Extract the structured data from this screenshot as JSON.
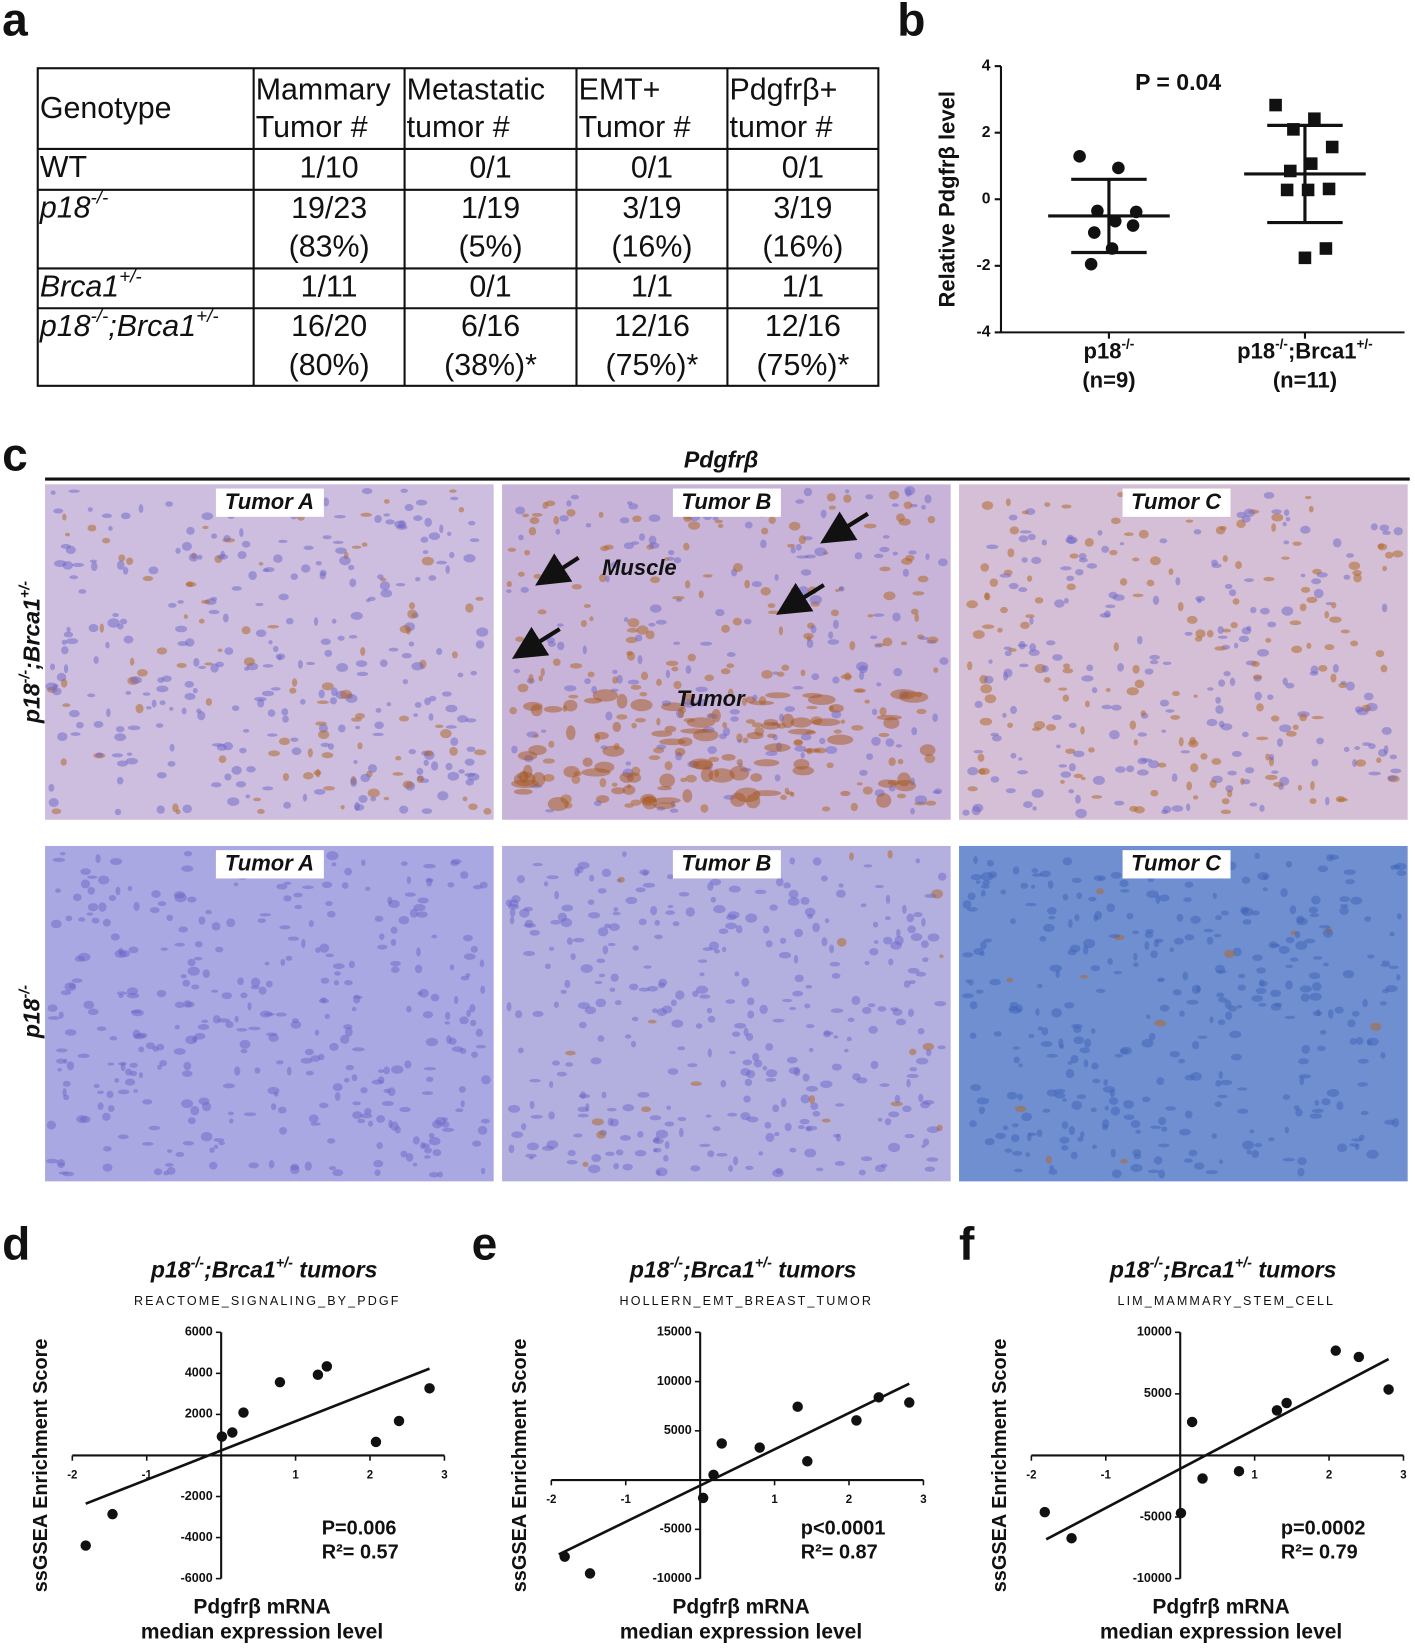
{
  "panel_labels": [
    "a",
    "b",
    "c",
    "d",
    "e",
    "f"
  ],
  "table": {
    "header": [
      [
        "Genotype"
      ],
      [
        "Mammary",
        "Tumor #"
      ],
      [
        "Metastatic",
        "tumor #"
      ],
      [
        "EMT+",
        "Tumor #"
      ],
      [
        "Pdgfrβ+",
        "tumor #"
      ]
    ],
    "rows": [
      {
        "genotype": [
          {
            "text": "WT"
          }
        ],
        "italic": false,
        "cells": [
          [
            "1/10"
          ],
          [
            "0/1"
          ],
          [
            "0/1"
          ],
          [
            "0/1"
          ]
        ]
      },
      {
        "genotype": [
          {
            "text": "p18"
          },
          {
            "sup": "-/-"
          }
        ],
        "italic": true,
        "cells": [
          [
            "19/23",
            "(83%)"
          ],
          [
            "1/19",
            "(5%)"
          ],
          [
            "3/19",
            "(16%)"
          ],
          [
            "3/19",
            "(16%)"
          ]
        ]
      },
      {
        "genotype": [
          {
            "text": "Brca1"
          },
          {
            "sup": "+/-"
          }
        ],
        "italic": true,
        "cells": [
          [
            "1/11"
          ],
          [
            "0/1"
          ],
          [
            "1/1"
          ],
          [
            "1/1"
          ]
        ]
      },
      {
        "genotype": [
          {
            "text": "p18"
          },
          {
            "sup": "-/-"
          },
          {
            "text": ";Brca1"
          },
          {
            "sup": "+/-"
          }
        ],
        "italic": true,
        "cells": [
          [
            "16/20",
            "(80%)"
          ],
          [
            "6/16",
            "(38%)*"
          ],
          [
            "12/16",
            "(75%)*"
          ],
          [
            "12/16",
            "(75%)*"
          ]
        ]
      }
    ]
  },
  "micrographs": {
    "stain": "Pdgfrβ",
    "column_labels": [
      "Tumor A",
      "Tumor B",
      "Tumor C"
    ],
    "row_labels": [
      [
        {
          "text": "p18"
        },
        {
          "sup": "-/-"
        },
        {
          "text": ";Brca1"
        },
        {
          "sup": "+/-"
        }
      ],
      [
        {
          "text": "p18"
        },
        {
          "sup": "-/-"
        }
      ]
    ],
    "annotations": [
      "Muscle",
      "Tumor"
    ]
  },
  "chart_data": [
    {
      "type": "dot",
      "ylabel": "Relative Pdgfrβ level",
      "annotation": "P = 0.04",
      "categories": [
        [
          {
            "text": "p18"
          },
          {
            "sup": "-/-"
          }
        ],
        [
          {
            "text": "p18"
          },
          {
            "sup": "-/-"
          },
          {
            "text": ";Brca1"
          },
          {
            "sup": "+/-"
          }
        ]
      ],
      "category_notes": [
        "(n=9)",
        "(n=11)"
      ],
      "ylim": [
        -4,
        4
      ],
      "yticks": [
        -4,
        -2,
        0,
        2,
        4
      ],
      "color": "#111",
      "groups": [
        {
          "marker": "circle",
          "values": [
            1.29,
            0.94,
            -0.35,
            -0.38,
            -0.66,
            -1.0,
            -0.79,
            -1.48,
            -1.95
          ],
          "mean": -0.5,
          "sd": 1.1
        },
        {
          "marker": "square",
          "values": [
            2.83,
            2.42,
            2.1,
            1.57,
            1.07,
            0.85,
            0.31,
            0.28,
            0.28,
            -1.48,
            -1.76
          ],
          "mean": 0.76,
          "sd": 1.46
        }
      ]
    },
    {
      "type": "scatter",
      "title": [
        {
          "text": "p18"
        },
        {
          "sup": "-/-"
        },
        {
          "text": ";Brca1"
        },
        {
          "sup": "+/-"
        },
        {
          "text": " tumors"
        }
      ],
      "subtitle": "REACTOME_SIGNALING_BY_PDGF",
      "ylabel": "ssGSEA Enrichment Score",
      "xlabel": [
        "Pdgfrβ mRNA",
        "median expression level"
      ],
      "annotations": [
        "P=0.006",
        "R²= 0.57"
      ],
      "xlim": [
        -2,
        3
      ],
      "xticks": [
        -2,
        -1,
        1,
        2,
        3
      ],
      "ylim": [
        -6000,
        6000
      ],
      "yticks": [
        6000,
        4000,
        2000,
        -2000,
        -4000,
        -6000
      ],
      "color": "#111",
      "x": [
        -1.82,
        -1.46,
        0.01,
        0.15,
        0.3,
        0.79,
        1.3,
        1.42,
        2.08,
        2.39,
        2.8
      ],
      "y": [
        -4390,
        -2860,
        920,
        1120,
        2090,
        3570,
        3930,
        4340,
        660,
        1680,
        3270
      ],
      "fit": {
        "x": [
          -1.82,
          2.8
        ],
        "y": [
          -2350,
          4230
        ]
      }
    },
    {
      "type": "scatter",
      "title": [
        {
          "text": "p18"
        },
        {
          "sup": "-/-"
        },
        {
          "text": ";Brca1"
        },
        {
          "sup": "+/-"
        },
        {
          "text": " tumors"
        }
      ],
      "subtitle": "HOLLERN_EMT_BREAST_TUMOR",
      "ylabel": "ssGSEA Enrichment Score",
      "xlabel": [
        "Pdgfrβ mRNA",
        "median expression level"
      ],
      "annotations": [
        "p<0.0001",
        "R²= 0.87"
      ],
      "xlim": [
        -2,
        3
      ],
      "xticks": [
        -2,
        -1,
        1,
        2,
        3
      ],
      "ylim": [
        -10000,
        15000
      ],
      "yticks": [
        15000,
        10000,
        5000,
        -5000,
        -10000
      ],
      "color": "#111",
      "x": [
        -1.82,
        -1.48,
        0.04,
        0.18,
        0.29,
        0.8,
        1.31,
        1.44,
        2.1,
        2.4,
        2.81
      ],
      "y": [
        -7770,
        -9470,
        -1810,
        530,
        3720,
        3300,
        7450,
        1910,
        6060,
        8400,
        7870
      ],
      "fit": {
        "x": [
          -1.9,
          2.81
        ],
        "y": [
          -7550,
          9790
        ]
      }
    },
    {
      "type": "scatter",
      "title": [
        {
          "text": "p18"
        },
        {
          "sup": "-/-"
        },
        {
          "text": ";Brca1"
        },
        {
          "sup": "+/-"
        },
        {
          "text": " tumors"
        }
      ],
      "subtitle": "LIM_MAMMARY_STEM_CELL",
      "ylabel": "ssGSEA Enrichment Score",
      "xlabel": [
        "Pdgfrβ mRNA",
        "median expression level"
      ],
      "annotations": [
        "p=0.0002",
        "R²= 0.79"
      ],
      "xlim": [
        -2,
        3
      ],
      "xticks": [
        -2,
        -1,
        1,
        2,
        3
      ],
      "ylim": [
        -10000,
        10000
      ],
      "yticks": [
        10000,
        5000,
        -5000,
        -10000
      ],
      "color": "#111",
      "x": [
        -1.82,
        -1.46,
        0.16,
        0.01,
        0.3,
        0.79,
        1.3,
        1.43,
        2.09,
        2.4,
        2.8
      ],
      "y": [
        -4600,
        -6720,
        2720,
        -4680,
        -1870,
        -1280,
        3660,
        4260,
        8510,
        8000,
        5360
      ],
      "fit": {
        "x": [
          -1.8,
          2.8
        ],
        "y": [
          -6810,
          7830
        ]
      }
    }
  ]
}
